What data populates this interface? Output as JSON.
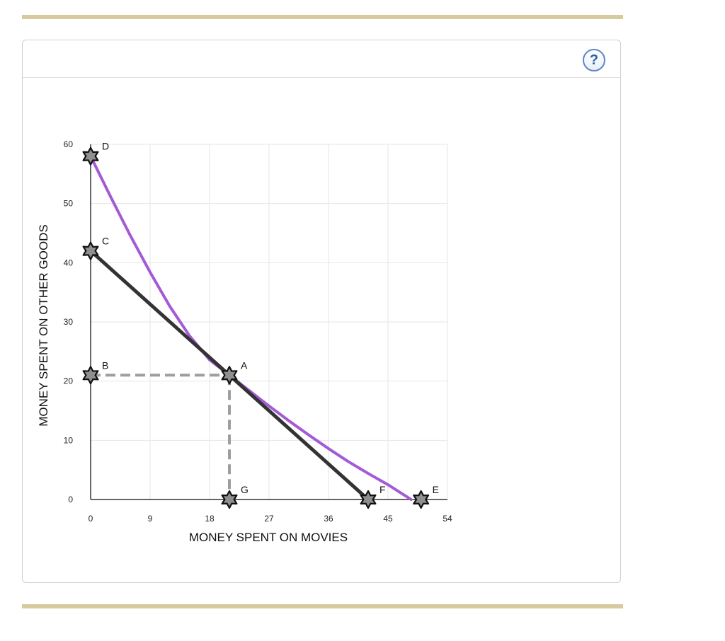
{
  "colors": {
    "rule": "#d7ca9f",
    "budget_line": "#333333",
    "indifference_curve": "#a45ad6",
    "guide_line": "#9e9e9e",
    "marker_fill": "#8f8f8f",
    "grid": "#e6e6e6"
  },
  "help": {
    "label": "?",
    "icon": "question-mark-icon"
  },
  "chart_data": {
    "type": "line",
    "xlabel": "MONEY SPENT ON MOVIES",
    "ylabel": "MONEY SPENT ON OTHER GOODS",
    "xlim": [
      0,
      54
    ],
    "ylim": [
      0,
      60
    ],
    "xticks": [
      0,
      9,
      18,
      27,
      36,
      45,
      54
    ],
    "yticks": [
      0,
      10,
      20,
      30,
      40,
      50,
      60
    ],
    "grid": true,
    "series": [
      {
        "kind": "indifference_curve",
        "color": "#a45ad6",
        "x": [
          0,
          3,
          6,
          9,
          12,
          15,
          18,
          21,
          24,
          27,
          30,
          33,
          36,
          39,
          42,
          45,
          48.5
        ],
        "y": [
          58,
          51.2,
          44.6,
          38.4,
          32.6,
          27.6,
          23.6,
          21,
          18.4,
          15.8,
          13.3,
          10.9,
          8.6,
          6.4,
          4.4,
          2.5,
          0
        ]
      },
      {
        "kind": "budget_line",
        "color": "#333333",
        "x": [
          0,
          42
        ],
        "y": [
          42,
          0
        ]
      }
    ],
    "guides": [
      {
        "x": [
          0,
          21
        ],
        "y": [
          21,
          21
        ]
      },
      {
        "x": [
          21,
          21
        ],
        "y": [
          21,
          0
        ]
      }
    ],
    "points": [
      {
        "label": "D",
        "x": 0,
        "y": 58
      },
      {
        "label": "C",
        "x": 0,
        "y": 42
      },
      {
        "label": "B",
        "x": 0,
        "y": 21
      },
      {
        "label": "A",
        "x": 21,
        "y": 21
      },
      {
        "label": "G",
        "x": 21,
        "y": 0
      },
      {
        "label": "F",
        "x": 42,
        "y": 0
      },
      {
        "label": "E",
        "x": 50,
        "y": 0
      }
    ]
  }
}
